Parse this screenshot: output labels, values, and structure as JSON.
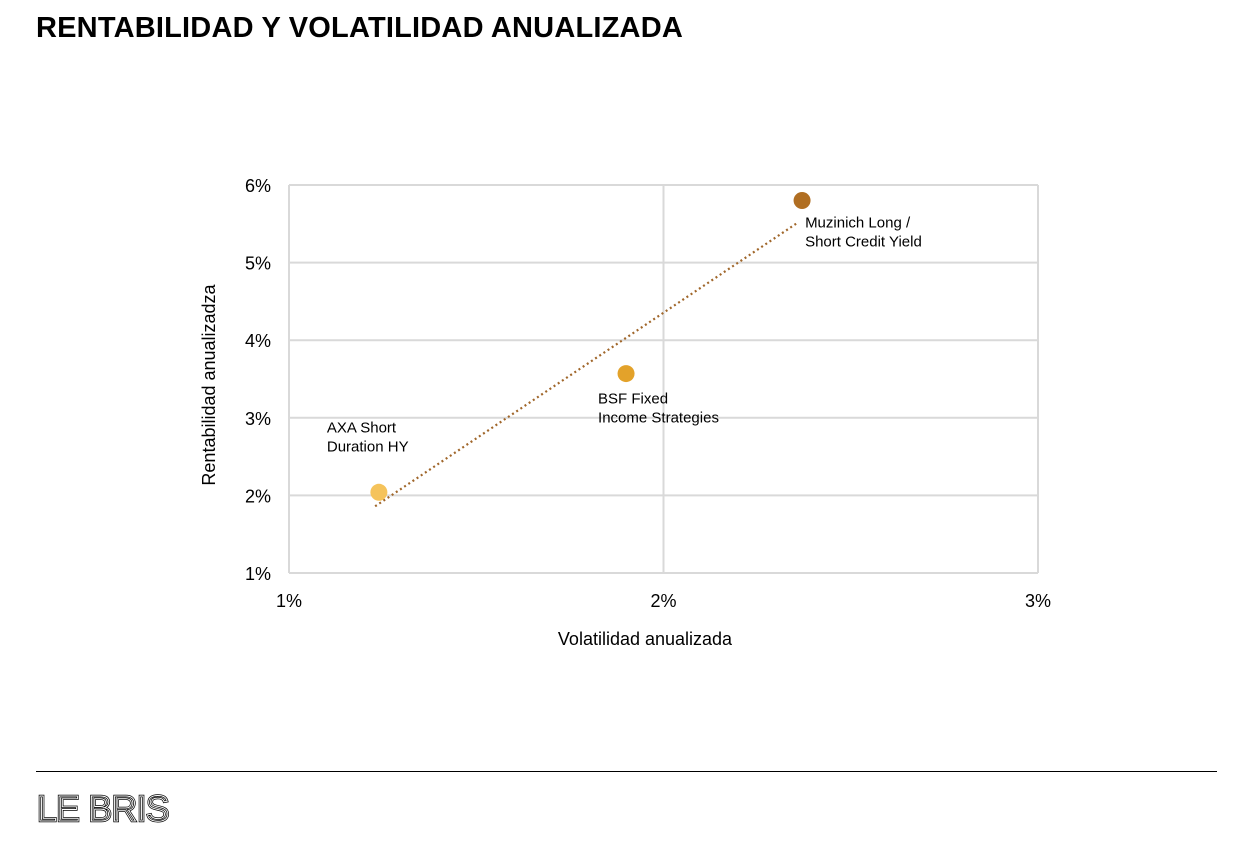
{
  "page": {
    "title": "RENTABILIDAD Y VOLATILIDAD ANUALIZADA",
    "brand": "LE BRIS"
  },
  "colors": {
    "gridline": "#d9d9d9",
    "trendline": "#a0662a",
    "axis_text": "#000000"
  },
  "chart_data": {
    "type": "scatter",
    "title": "",
    "xlabel": "Volatilidad anualizada",
    "ylabel": "Rentabilidad  anualizadza",
    "xlim": [
      1,
      3
    ],
    "ylim": [
      1,
      6
    ],
    "x_ticks": [
      1,
      2,
      3
    ],
    "y_ticks": [
      1,
      2,
      3,
      4,
      5,
      6
    ],
    "x_tick_labels": [
      "1%",
      "2%",
      "3%"
    ],
    "y_tick_labels": [
      "1%",
      "2%",
      "3%",
      "4%",
      "5%",
      "6%"
    ],
    "grid": true,
    "legend": "none",
    "points": [
      {
        "label_lines": [
          "AXA Short",
          "Duration HY"
        ],
        "x": 1.24,
        "y": 2.04,
        "color": "#f5c35b"
      },
      {
        "label_lines": [
          "BSF Fixed",
          "Income Strategies"
        ],
        "x": 1.9,
        "y": 3.57,
        "color": "#e3a22a"
      },
      {
        "label_lines": [
          "Muzinich Long /",
          "Short Credit Yield"
        ],
        "x": 2.37,
        "y": 5.8,
        "color": "#b06e22"
      }
    ],
    "trendline": {
      "style": "dotted",
      "x": [
        1.23,
        2.36
      ],
      "y": [
        1.86,
        5.52
      ]
    }
  }
}
